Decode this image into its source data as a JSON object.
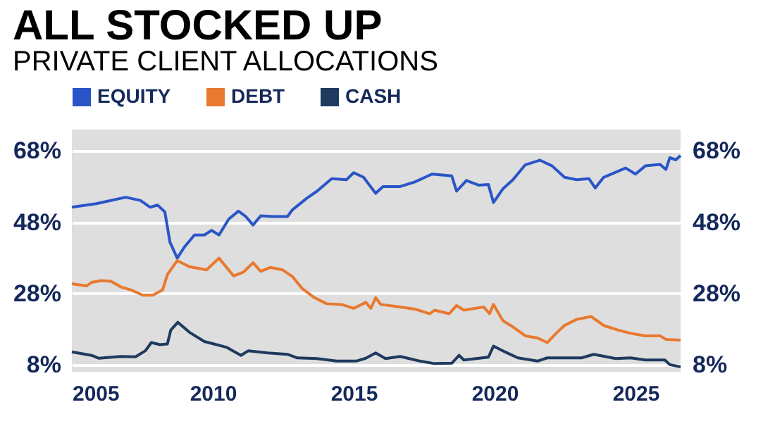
{
  "chart_data": {
    "type": "line",
    "title": "ALL STOCKED UP",
    "subtitle": "PRIVATE CLIENT ALLOCATIONS",
    "xlim": [
      2005.0,
      2026.6
    ],
    "xticks": [
      2005,
      2010,
      2015,
      2020,
      2025
    ],
    "ylim": [
      6,
      74
    ],
    "yticks": [
      {
        "value": 8,
        "label": "8%"
      },
      {
        "value": 28,
        "label": "28%"
      },
      {
        "value": 48,
        "label": "48%"
      },
      {
        "value": 68,
        "label": "68%"
      }
    ],
    "y2lim": [
      6,
      74
    ],
    "y2ticks": [
      {
        "value": 8,
        "label": "8%"
      },
      {
        "value": 28,
        "label": "28%"
      },
      {
        "value": 48,
        "label": "48%"
      },
      {
        "value": 68,
        "label": "68%"
      }
    ],
    "grid": "y",
    "legend": "top left",
    "marker": "none",
    "line_style": "solid",
    "series": [
      {
        "name": "EQUITY",
        "color": "#2a55c8",
        "x": [
          2005.0,
          2005.87,
          2006.91,
          2007.43,
          2007.78,
          2008.04,
          2008.3,
          2008.48,
          2008.74,
          2009.0,
          2009.35,
          2009.7,
          2009.96,
          2010.22,
          2010.57,
          2010.91,
          2011.17,
          2011.43,
          2011.7,
          2012.13,
          2012.65,
          2012.83,
          2013.35,
          2013.7,
          2014.22,
          2014.74,
          2015.0,
          2015.35,
          2015.78,
          2016.04,
          2016.65,
          2017.17,
          2017.78,
          2018.48,
          2018.65,
          2019.0,
          2019.43,
          2019.78,
          2019.96,
          2020.3,
          2020.65,
          2021.09,
          2021.61,
          2022.04,
          2022.48,
          2022.91,
          2023.35,
          2023.57,
          2023.87,
          2024.65,
          2025.0,
          2025.35,
          2025.87,
          2026.08,
          2026.22,
          2026.43,
          2026.6
        ],
        "values": [
          52.2,
          53.2,
          55.0,
          54.1,
          52.2,
          52.8,
          50.9,
          42.4,
          37.9,
          41.1,
          44.4,
          44.4,
          45.7,
          44.4,
          48.9,
          51.1,
          49.6,
          47.2,
          49.8,
          49.6,
          49.6,
          51.5,
          54.8,
          56.7,
          60.2,
          59.9,
          61.9,
          60.6,
          56.1,
          58.0,
          58.0,
          59.3,
          61.5,
          61.0,
          56.7,
          59.7,
          58.4,
          58.6,
          53.5,
          57.4,
          59.9,
          64.1,
          65.4,
          63.8,
          60.6,
          59.9,
          60.2,
          57.6,
          60.6,
          63.2,
          61.5,
          63.8,
          64.2,
          62.8,
          66.1,
          65.5,
          66.7
        ]
      },
      {
        "name": "DEBT",
        "color": "#e8792f",
        "x": [
          2005.0,
          2005.52,
          2005.7,
          2006.04,
          2006.39,
          2006.74,
          2007.09,
          2007.52,
          2007.87,
          2008.22,
          2008.39,
          2008.74,
          2009.17,
          2009.78,
          2010.22,
          2010.74,
          2011.09,
          2011.43,
          2011.7,
          2012.04,
          2012.48,
          2012.83,
          2013.17,
          2013.61,
          2014.04,
          2014.57,
          2015.0,
          2015.43,
          2015.61,
          2015.78,
          2015.96,
          2016.65,
          2017.17,
          2017.7,
          2017.87,
          2018.39,
          2018.65,
          2018.91,
          2019.61,
          2019.82,
          2019.96,
          2020.3,
          2020.65,
          2021.09,
          2021.52,
          2021.87,
          2022.22,
          2022.48,
          2022.91,
          2023.43,
          2023.87,
          2024.39,
          2024.83,
          2025.35,
          2025.87,
          2026.08,
          2026.6
        ],
        "values": [
          30.7,
          30.1,
          31.1,
          31.6,
          31.4,
          29.8,
          29.0,
          27.5,
          27.5,
          29.0,
          33.3,
          37.2,
          35.5,
          34.6,
          37.9,
          32.9,
          34.0,
          36.6,
          34.2,
          35.3,
          34.6,
          32.7,
          29.4,
          26.8,
          25.1,
          24.9,
          23.8,
          25.5,
          23.8,
          26.8,
          24.9,
          24.2,
          23.6,
          22.3,
          23.3,
          22.3,
          24.6,
          23.3,
          24.2,
          22.3,
          24.9,
          20.3,
          18.6,
          16.1,
          15.5,
          14.2,
          17.1,
          19.0,
          20.7,
          21.5,
          19.0,
          17.7,
          16.8,
          16.1,
          16.1,
          15.1,
          14.9
        ]
      },
      {
        "name": "CASH",
        "color": "#1e3a5f",
        "x": [
          2005.0,
          2005.7,
          2005.96,
          2006.74,
          2007.26,
          2007.61,
          2007.82,
          2008.13,
          2008.39,
          2008.51,
          2008.76,
          2009.17,
          2009.7,
          2010.04,
          2010.48,
          2011.0,
          2011.26,
          2011.96,
          2012.65,
          2013.0,
          2013.7,
          2014.39,
          2015.09,
          2015.43,
          2015.78,
          2016.13,
          2016.65,
          2017.35,
          2017.87,
          2018.48,
          2018.74,
          2018.91,
          2019.78,
          2019.96,
          2020.39,
          2020.83,
          2021.52,
          2021.87,
          2023.09,
          2023.52,
          2024.3,
          2024.83,
          2025.35,
          2026.04,
          2026.22,
          2026.6
        ],
        "values": [
          11.6,
          10.6,
          9.8,
          10.3,
          10.2,
          11.9,
          14.2,
          13.6,
          13.8,
          17.7,
          19.9,
          17.1,
          14.5,
          13.8,
          12.9,
          10.6,
          11.9,
          11.3,
          10.9,
          9.9,
          9.7,
          9.0,
          9.0,
          9.8,
          11.3,
          9.7,
          10.3,
          9.0,
          8.3,
          8.4,
          10.6,
          9.3,
          10.1,
          13.2,
          11.5,
          9.9,
          9.0,
          9.9,
          9.9,
          10.9,
          9.7,
          9.9,
          9.3,
          9.3,
          8.0,
          7.4
        ]
      }
    ]
  }
}
